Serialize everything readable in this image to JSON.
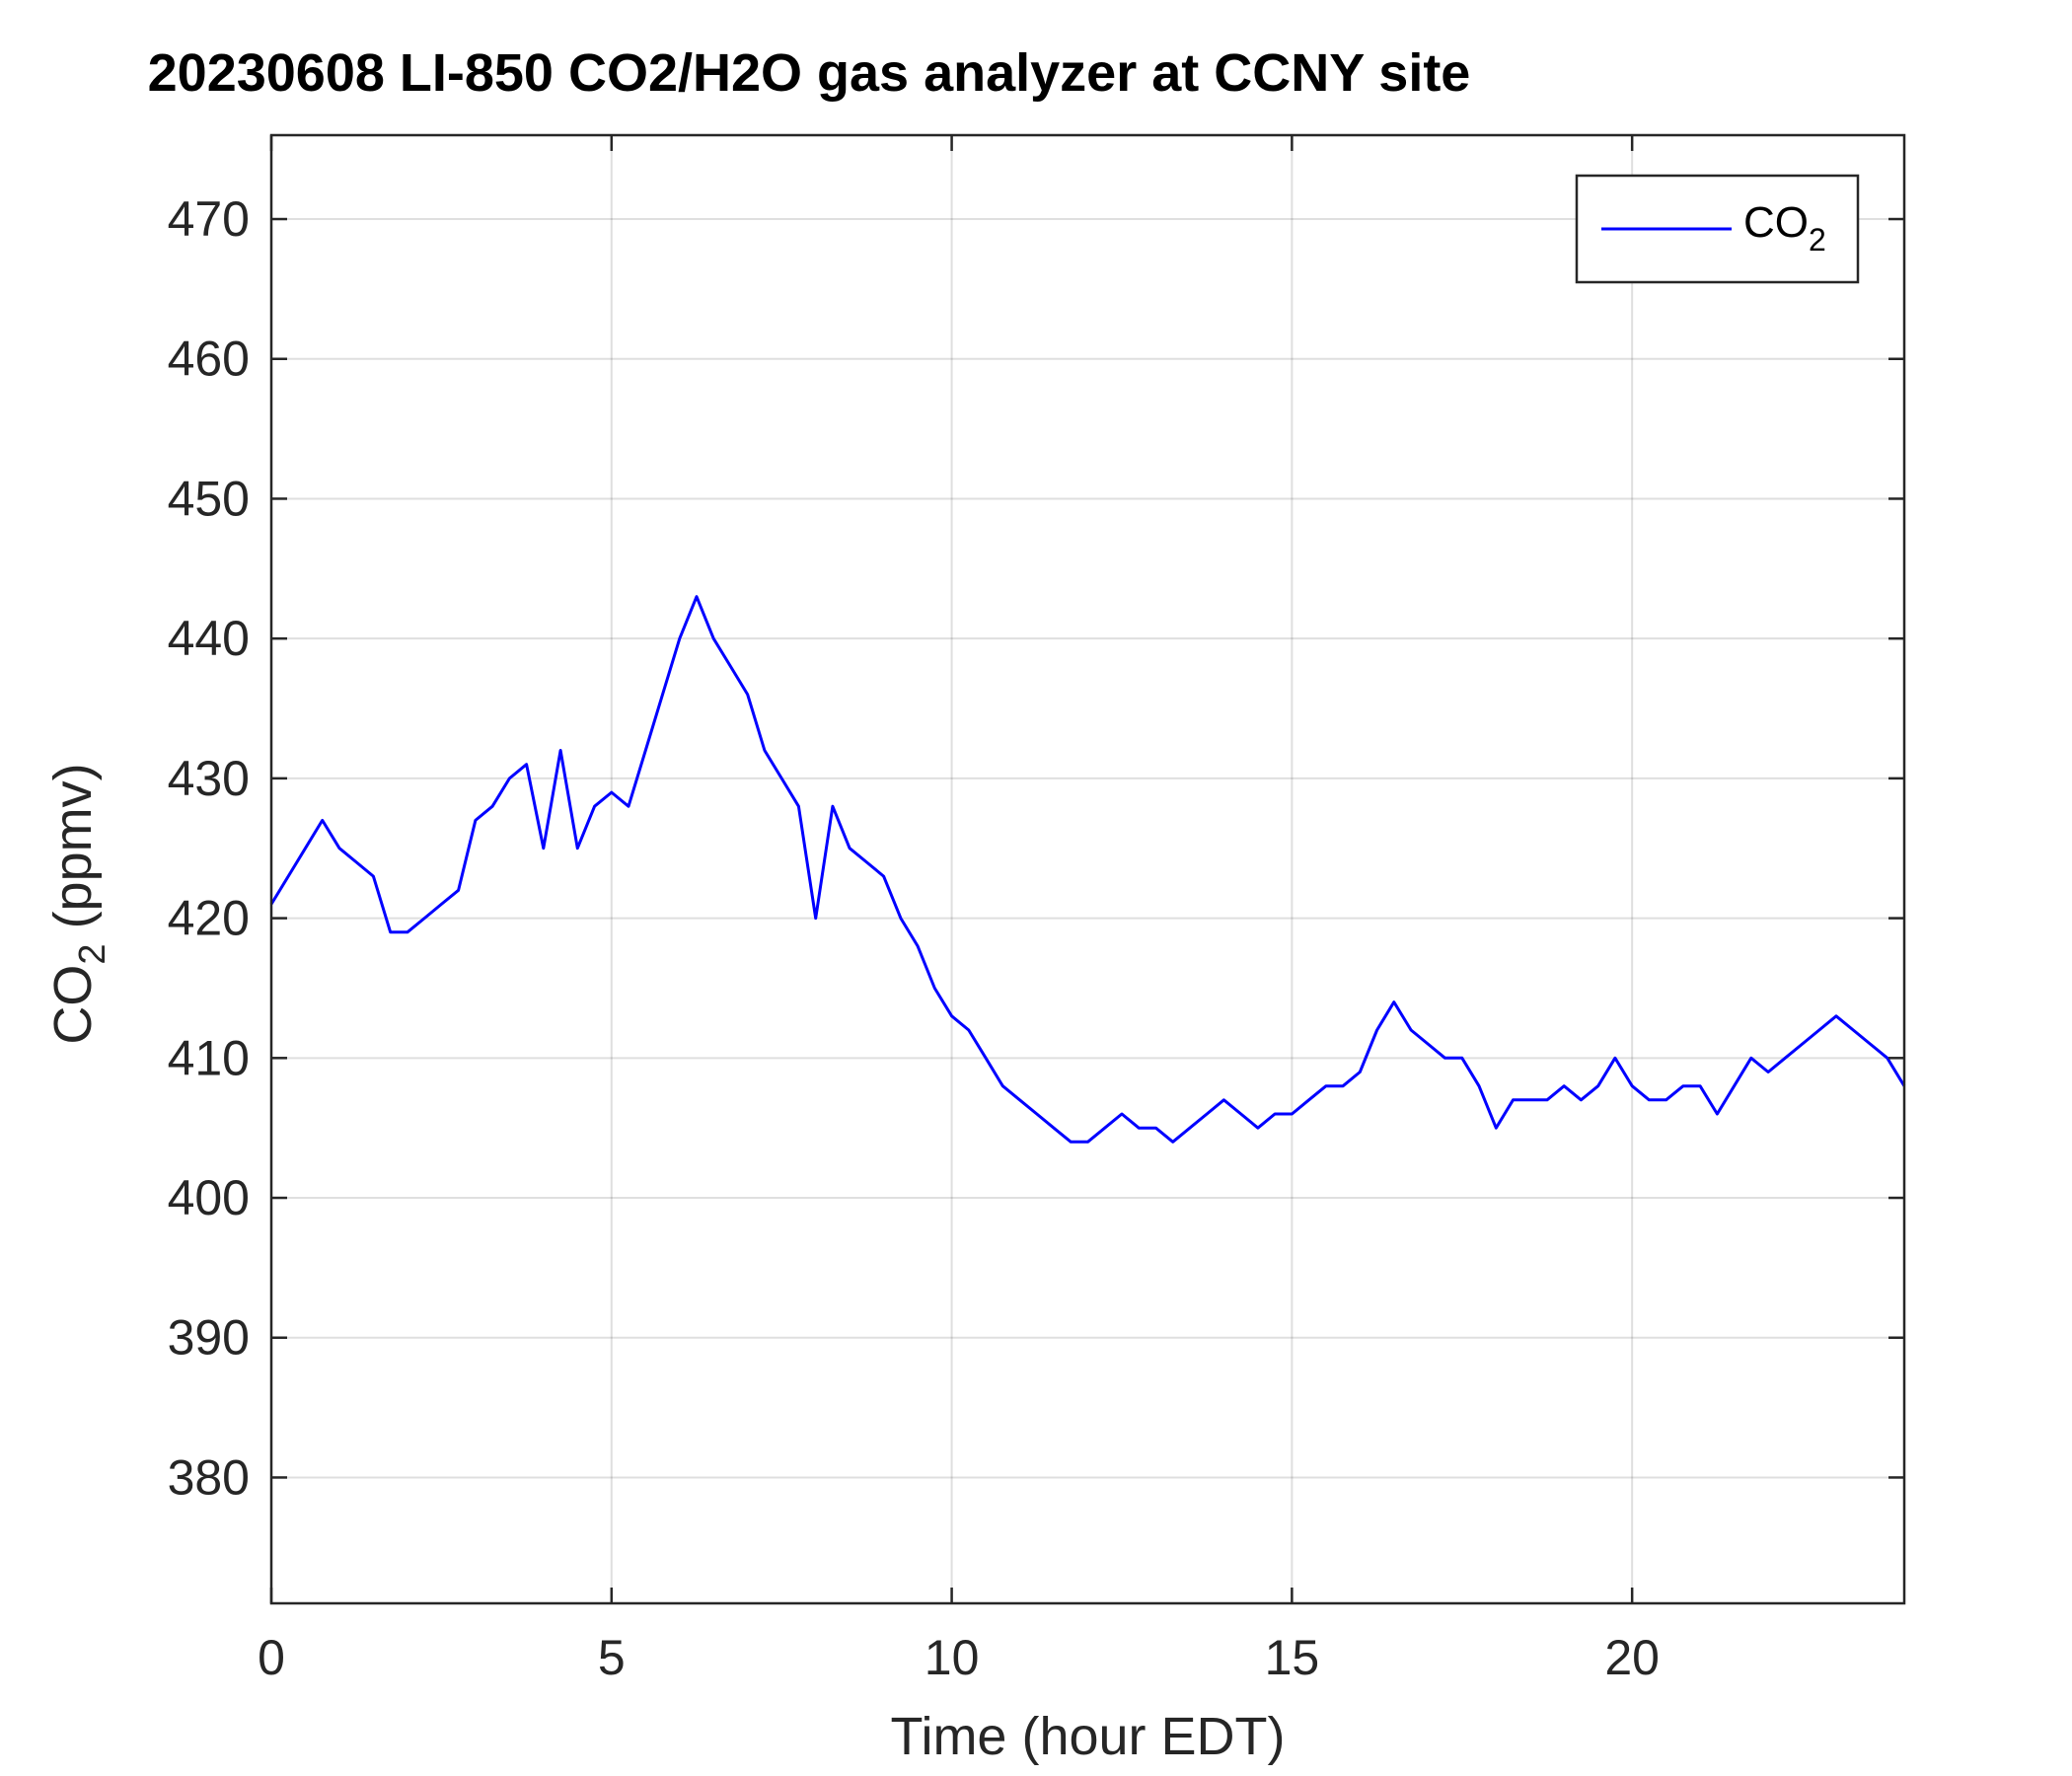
{
  "chart_data": {
    "type": "line",
    "title": "20230608 LI-850 CO2/H2O gas analyzer at CCNY site",
    "xlabel": "Time (hour EDT)",
    "ylabel": {
      "base": "CO",
      "subscript": "2",
      "rest": " (ppmv)"
    },
    "xlim": [
      0,
      24
    ],
    "ylim": [
      371,
      476
    ],
    "xticks": [
      0,
      5,
      10,
      15,
      20
    ],
    "yticks": [
      380,
      390,
      400,
      410,
      420,
      430,
      440,
      450,
      460,
      470
    ],
    "grid": true,
    "legend_position": "top-right",
    "series": [
      {
        "name": {
          "base": "CO",
          "subscript": "2"
        },
        "color": "#0000ff",
        "x": [
          0.0,
          0.25,
          0.5,
          0.75,
          1.0,
          1.25,
          1.5,
          1.75,
          2.0,
          2.25,
          2.5,
          2.75,
          3.0,
          3.25,
          3.5,
          3.75,
          4.0,
          4.25,
          4.5,
          4.75,
          5.0,
          5.25,
          5.5,
          5.75,
          6.0,
          6.25,
          6.5,
          6.75,
          7.0,
          7.25,
          7.5,
          7.75,
          8.0,
          8.25,
          8.5,
          8.75,
          9.0,
          9.25,
          9.5,
          9.75,
          10.0,
          10.25,
          10.5,
          10.75,
          11.0,
          11.25,
          11.5,
          11.75,
          12.0,
          12.25,
          12.5,
          12.75,
          13.0,
          13.25,
          13.5,
          13.75,
          14.0,
          14.25,
          14.5,
          14.75,
          15.0,
          15.25,
          15.5,
          15.75,
          16.0,
          16.25,
          16.5,
          16.75,
          17.0,
          17.25,
          17.5,
          17.75,
          18.0,
          18.25,
          18.5,
          18.75,
          19.0,
          19.25,
          19.5,
          19.75,
          20.0,
          20.25,
          20.5,
          20.75,
          21.0,
          21.25,
          21.5,
          21.75,
          22.0,
          22.25,
          22.5,
          22.75,
          23.0,
          23.25,
          23.5,
          23.75,
          24.0
        ],
        "y": [
          421,
          423,
          425,
          427,
          425,
          424,
          423,
          419,
          419,
          420,
          421,
          422,
          427,
          428,
          430,
          431,
          425,
          432,
          425,
          428,
          429,
          428,
          432,
          436,
          440,
          443,
          440,
          438,
          436,
          432,
          430,
          428,
          420,
          428,
          425,
          424,
          423,
          420,
          418,
          415,
          413,
          412,
          410,
          408,
          407,
          406,
          405,
          404,
          404,
          405,
          406,
          405,
          405,
          404,
          405,
          406,
          407,
          406,
          405,
          406,
          406,
          407,
          408,
          408,
          409,
          412,
          414,
          412,
          411,
          410,
          410,
          408,
          405,
          407,
          407,
          407,
          408,
          407,
          408,
          410,
          408,
          407,
          407,
          408,
          408,
          406,
          408,
          410,
          409,
          410,
          411,
          412,
          413,
          412,
          411,
          410,
          408
        ]
      }
    ]
  }
}
